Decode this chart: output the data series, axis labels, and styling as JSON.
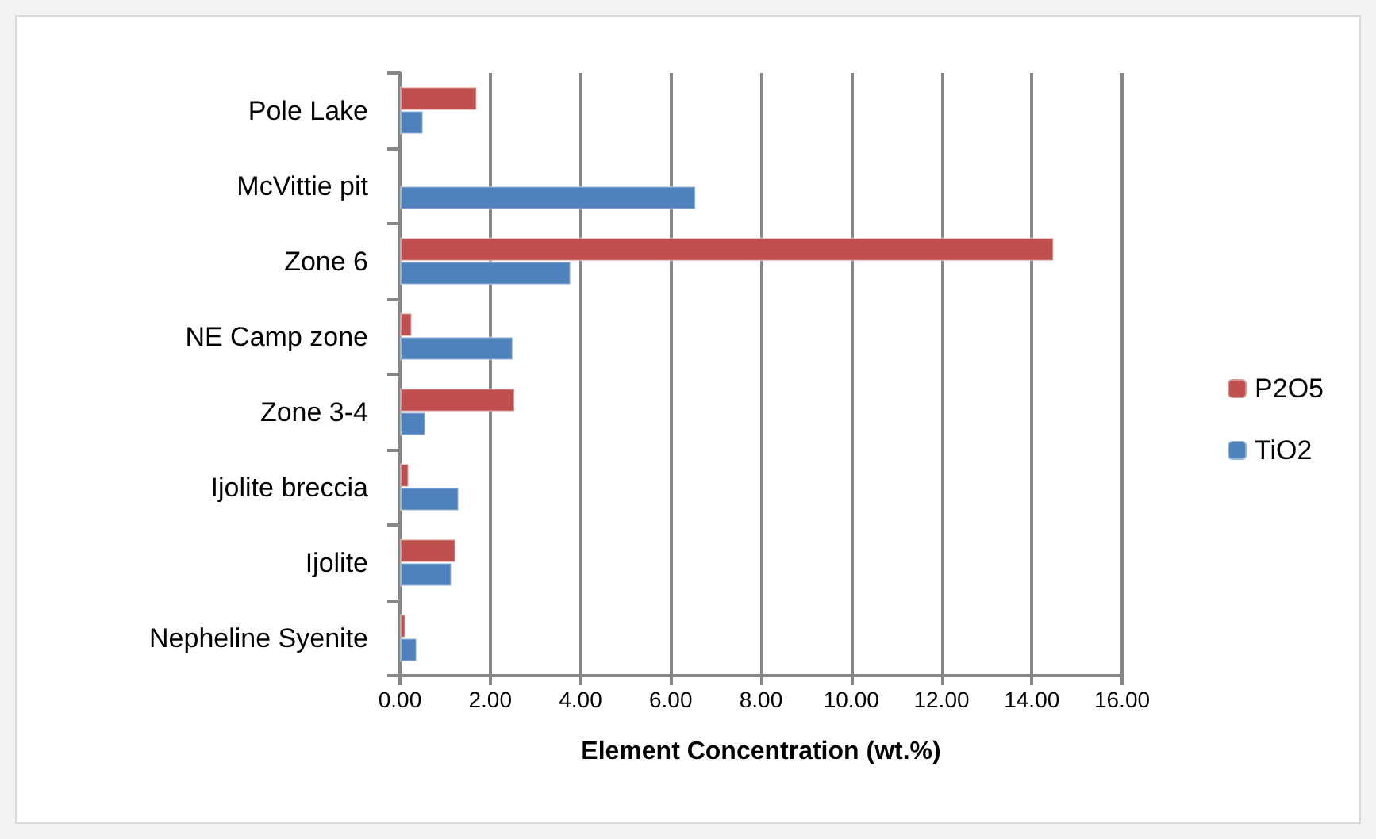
{
  "chart_data": {
    "type": "bar",
    "orientation": "horizontal",
    "xlabel": "Element Concentration (wt.%)",
    "categories": [
      "Pole Lake",
      "McVittie pit",
      "Zone 6",
      "NE Camp zone",
      "Zone 3-4",
      "Ijolite breccia",
      "Ijolite",
      "Nepheline Syenite"
    ],
    "series": [
      {
        "name": "P2O5",
        "color": "#c0504d",
        "values": [
          1.71,
          null,
          14.49,
          0.27,
          2.55,
          0.2,
          1.24,
          0.13
        ]
      },
      {
        "name": "TiO2",
        "color": "#4f81bd",
        "values": [
          0.52,
          6.56,
          3.79,
          2.51,
          0.57,
          1.31,
          1.15,
          0.38
        ]
      }
    ],
    "xlim": [
      0,
      16
    ],
    "xticks": [
      {
        "value": 0,
        "label": "0.00"
      },
      {
        "value": 2,
        "label": "2.00"
      },
      {
        "value": 4,
        "label": "4.00"
      },
      {
        "value": 6,
        "label": "6.00"
      },
      {
        "value": 8,
        "label": "8.00"
      },
      {
        "value": 10,
        "label": "10.00"
      },
      {
        "value": 12,
        "label": "12.00"
      },
      {
        "value": 14,
        "label": "14.00"
      },
      {
        "value": 16,
        "label": "16.00"
      }
    ],
    "grid": "x",
    "legend": "right"
  }
}
